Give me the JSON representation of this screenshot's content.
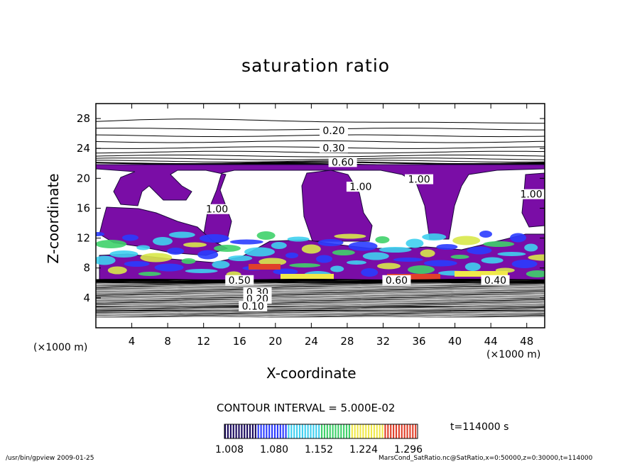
{
  "footer": {
    "left": "/usr/bin/gpview  2009-01-25",
    "right": "MarsCond_SatRatio.nc@SatRatio,x=0:50000,z=0:30000,t=114000"
  },
  "legend": {
    "contour_interval": "CONTOUR INTERVAL = 5.000E-02",
    "time": "t=114000 s",
    "ticks": [
      "1.008",
      "1.080",
      "1.152",
      "1.224",
      "1.296"
    ],
    "colors": [
      "#1a0a5e",
      "#2a3cff",
      "#3fd0f0",
      "#3fd16a",
      "#f0e84a",
      "#e0402a",
      "#b01818"
    ]
  },
  "chart_data": {
    "type": "contour",
    "title": "saturation ratio",
    "xlabel": "X-coordinate",
    "ylabel": "Z-coordinate",
    "x_unit": "(×1000 m)",
    "y_unit": "(×1000 m)",
    "xlim": [
      0,
      50
    ],
    "ylim": [
      0,
      30
    ],
    "xticks": [
      4,
      8,
      12,
      16,
      20,
      24,
      28,
      32,
      36,
      40,
      44,
      48
    ],
    "yticks": [
      4,
      8,
      12,
      16,
      20,
      24,
      28
    ],
    "contour_labels": [
      {
        "text": "0.20",
        "x": 26.5,
        "z": 26.0
      },
      {
        "text": "0.30",
        "x": 26.5,
        "z": 23.7
      },
      {
        "text": "0.60",
        "x": 27.5,
        "z": 21.8
      },
      {
        "text": "1.00",
        "x": 29.5,
        "z": 18.5
      },
      {
        "text": "1.00",
        "x": 36.0,
        "z": 19.5
      },
      {
        "text": "1.00",
        "x": 48.5,
        "z": 17.5
      },
      {
        "text": "1.00",
        "x": 13.5,
        "z": 15.5
      },
      {
        "text": "0.50",
        "x": 16.0,
        "z": 6.0
      },
      {
        "text": "0.60",
        "x": 33.5,
        "z": 6.0
      },
      {
        "text": "0.40",
        "x": 44.5,
        "z": 6.0
      },
      {
        "text": "0.30",
        "x": 18.0,
        "z": 4.4
      },
      {
        "text": "0.20",
        "x": 18.0,
        "z": 3.5
      },
      {
        "text": "0.10",
        "x": 17.5,
        "z": 2.5
      }
    ],
    "fill_color_supersaturated": "#7a0da6",
    "saturation_layer_z": [
      6.0,
      22.0
    ],
    "background_contour_color": "#000000"
  }
}
